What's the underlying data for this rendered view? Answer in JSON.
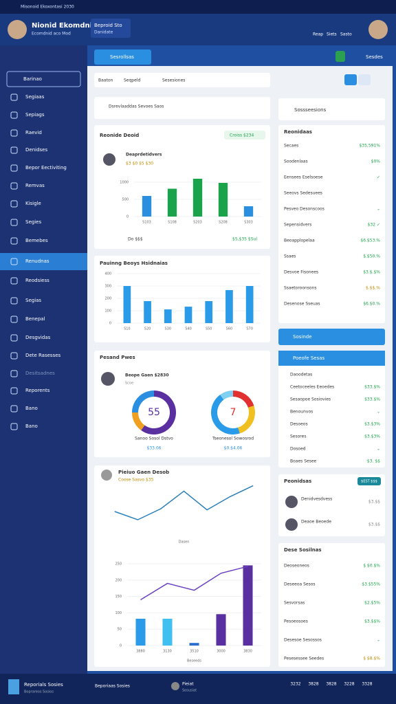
{
  "window": {
    "title": "Misonoid Ekoxontasi 2030"
  },
  "header": {
    "name": "Nionid Ekomdnia",
    "role": "Ecomdnid aco Mod",
    "project": "Beproid Sto",
    "project_sub": "Danidate",
    "actions": [
      "Reap",
      "Siets",
      "Sasto"
    ]
  },
  "sidebar": {
    "search": "Barinao",
    "items": [
      "Segiaas",
      "Sepiags",
      "Raevid",
      "Denidses",
      "Bepor Eectiviting",
      "Remvas",
      "Kisigle",
      "Segies",
      "Bemebes",
      "Renudnas",
      "Reodsiess",
      "Segias",
      "Benepal",
      "Desgvidas",
      "Dete Rasesses",
      "Desitsadnes",
      "Reporents",
      "Bano",
      "Bano"
    ],
    "active": 9
  },
  "toolbar": {
    "tab": "Sesrollsas",
    "button": "Sesdes",
    "filters": [
      "Baaton",
      "Seqpeld",
      "Sesesiones"
    ]
  },
  "cards": {
    "select": "Dsrevlaaddas Sevoes Saos",
    "revenue": {
      "badge": "Croiss $234",
      "person": "Deaprdetidvers",
      "meta": "$3 $0 $5 $30",
      "footer_left": "Do $$$",
      "footer_right": "$5,$35 $Sul"
    },
    "people": {
      "title": "Pesand Pwes",
      "person": "Beope Gaen $2830",
      "note": "Scoe",
      "left_label": "Sanoo Sosol Dstvo",
      "left_value": "$33.06",
      "right_label": "Tseonesol Sowosrod",
      "right_value": "$0.$4.06"
    },
    "trend": {
      "title": "Pieiuo Gaen Desob",
      "subtitle": "Coose Sasvo $35"
    }
  },
  "right": [
    {
      "title": "Sossseesions",
      "rows": []
    },
    {
      "title": "Reonidaas",
      "rows": [
        {
          "label": "Secaes",
          "value": "$35,591%"
        },
        {
          "label": "Soodenlaas",
          "value": "$0%"
        },
        {
          "label": "Eensees Eselsoese",
          "value": "✓"
        },
        {
          "label": "Seeovs Sedesuees",
          "value": ""
        },
        {
          "label": "Pesveo Desonscoos",
          "value": "⌄"
        },
        {
          "label": "Sepensidvers",
          "value": "$32 ✓"
        },
        {
          "label": "Beoapplopelaa",
          "value": "$6.$53.%"
        },
        {
          "label": "Ssaes",
          "value": "$.$50.%"
        },
        {
          "label": "Desvoe Fisonees",
          "value": "$3.$.$%"
        },
        {
          "label": "Ssaetoroonsons",
          "value": "$.$$.%"
        },
        {
          "label": "Desenose Sseuas",
          "value": "$6.$0.%"
        }
      ]
    },
    {
      "title": "Sosinde",
      "rows": []
    },
    {
      "title": "Poeofe Sesas",
      "rows": [
        {
          "label": "Daoodetas",
          "value": ""
        },
        {
          "label": "Ceetoceeles Eeoedes",
          "value": "$33.$%"
        },
        {
          "label": "Sesaopoe Sosiovies",
          "value": "$33.$%"
        },
        {
          "label": "Benounvos",
          "value": "⌄"
        },
        {
          "label": "Desoeos",
          "value": "$3.$3%"
        },
        {
          "label": "Sesores",
          "value": "$3.$3%"
        },
        {
          "label": "Dosoed",
          "value": "⌄"
        },
        {
          "label": "Boaes Sesee",
          "value": "$3. $$"
        }
      ]
    },
    {
      "title": "Peonidsas",
      "badge": "$EST $$$",
      "rows": [
        {
          "label": "Denidvesdvess",
          "value": "$3.$$"
        },
        {
          "label": "Deaoe Beoede",
          "value": "$3.$$"
        }
      ]
    },
    {
      "title": "Dese Sosilnas",
      "rows": [
        {
          "label": "Deoseoneos",
          "value": "$ $0.$%"
        },
        {
          "label": "Deseeoa Sesos",
          "value": "$3.$55%"
        },
        {
          "label": "Sesvorsas",
          "value": "$2.$5%"
        },
        {
          "label": "Pesoeosoes",
          "value": "$3.$$%"
        },
        {
          "label": "Desesoe Sesossos",
          "value": "⌄"
        },
        {
          "label": "Pesesessee Seedes",
          "value": "$ $8.$%"
        }
      ]
    }
  ],
  "footer": {
    "brand": "Reporials Sosies",
    "brand_sub": "Boprareos Sosios",
    "search": "Beporiaas Sosies",
    "user": "Pieiat",
    "user_sub": "Sosusiat",
    "stats": [
      "3232",
      "3828",
      "3828",
      "3228",
      "3328"
    ]
  },
  "chart_data": [
    {
      "type": "bar",
      "title": "Reonide Deoid",
      "categories": [
        "S103",
        "S108",
        "S203",
        "S208",
        "S303"
      ],
      "values": [
        600,
        810,
        1100,
        980,
        300
      ],
      "colors": [
        "#2b8fe0",
        "#1aa34a",
        "#1aa34a",
        "#1aa34a",
        "#2b8fe0"
      ],
      "ylim": [
        0,
        1200
      ],
      "yticks": [
        0,
        500,
        1000
      ]
    },
    {
      "type": "bar",
      "title": "Pauinng Beoys Hsidnaias",
      "categories": [
        "S10",
        "S20",
        "S30",
        "S40",
        "S50",
        "S60",
        "S70"
      ],
      "values": [
        300,
        178,
        111,
        133,
        178,
        267,
        300
      ],
      "colors": [
        "#2a9be8",
        "#2a9be8",
        "#2a9be8",
        "#2a9be8",
        "#2a9be8",
        "#2a9be8",
        "#2a9be8"
      ],
      "ylim": [
        0,
        400
      ],
      "yticks": [
        0,
        100,
        200,
        300,
        400
      ]
    },
    {
      "type": "pie",
      "center_label": "55",
      "values": [
        60,
        15,
        25
      ],
      "colors": [
        "#5a2fa0",
        "#f0a020",
        "#2a8fe0"
      ]
    },
    {
      "type": "pie",
      "center_label": "7",
      "values": [
        20,
        25,
        45,
        10
      ],
      "colors": [
        "#e03030",
        "#f0c020",
        "#2a9be8",
        "#7fd0f0"
      ]
    },
    {
      "type": "line",
      "x_label": "Dasen",
      "values": [
        45,
        30,
        50,
        82,
        48,
        72,
        92
      ],
      "color": "#2a7fb8",
      "ylim": [
        0,
        100
      ]
    },
    {
      "type": "combo",
      "x_label": "Beseeds",
      "categories": [
        "3880",
        "3130",
        "3510",
        "3000",
        "3830"
      ],
      "values": [
        82,
        82,
        8,
        96,
        245
      ],
      "colors": [
        "#2a9be8",
        "#40c0f0",
        "#2a6fd0",
        "#5a2fa0",
        "#5a2fa0"
      ],
      "line": {
        "values": [
          140,
          190,
          169,
          221,
          242
        ],
        "color": "#6a40c0"
      },
      "ylim": [
        0,
        250
      ],
      "yticks": [
        0,
        50,
        100,
        150,
        200,
        250
      ]
    }
  ]
}
